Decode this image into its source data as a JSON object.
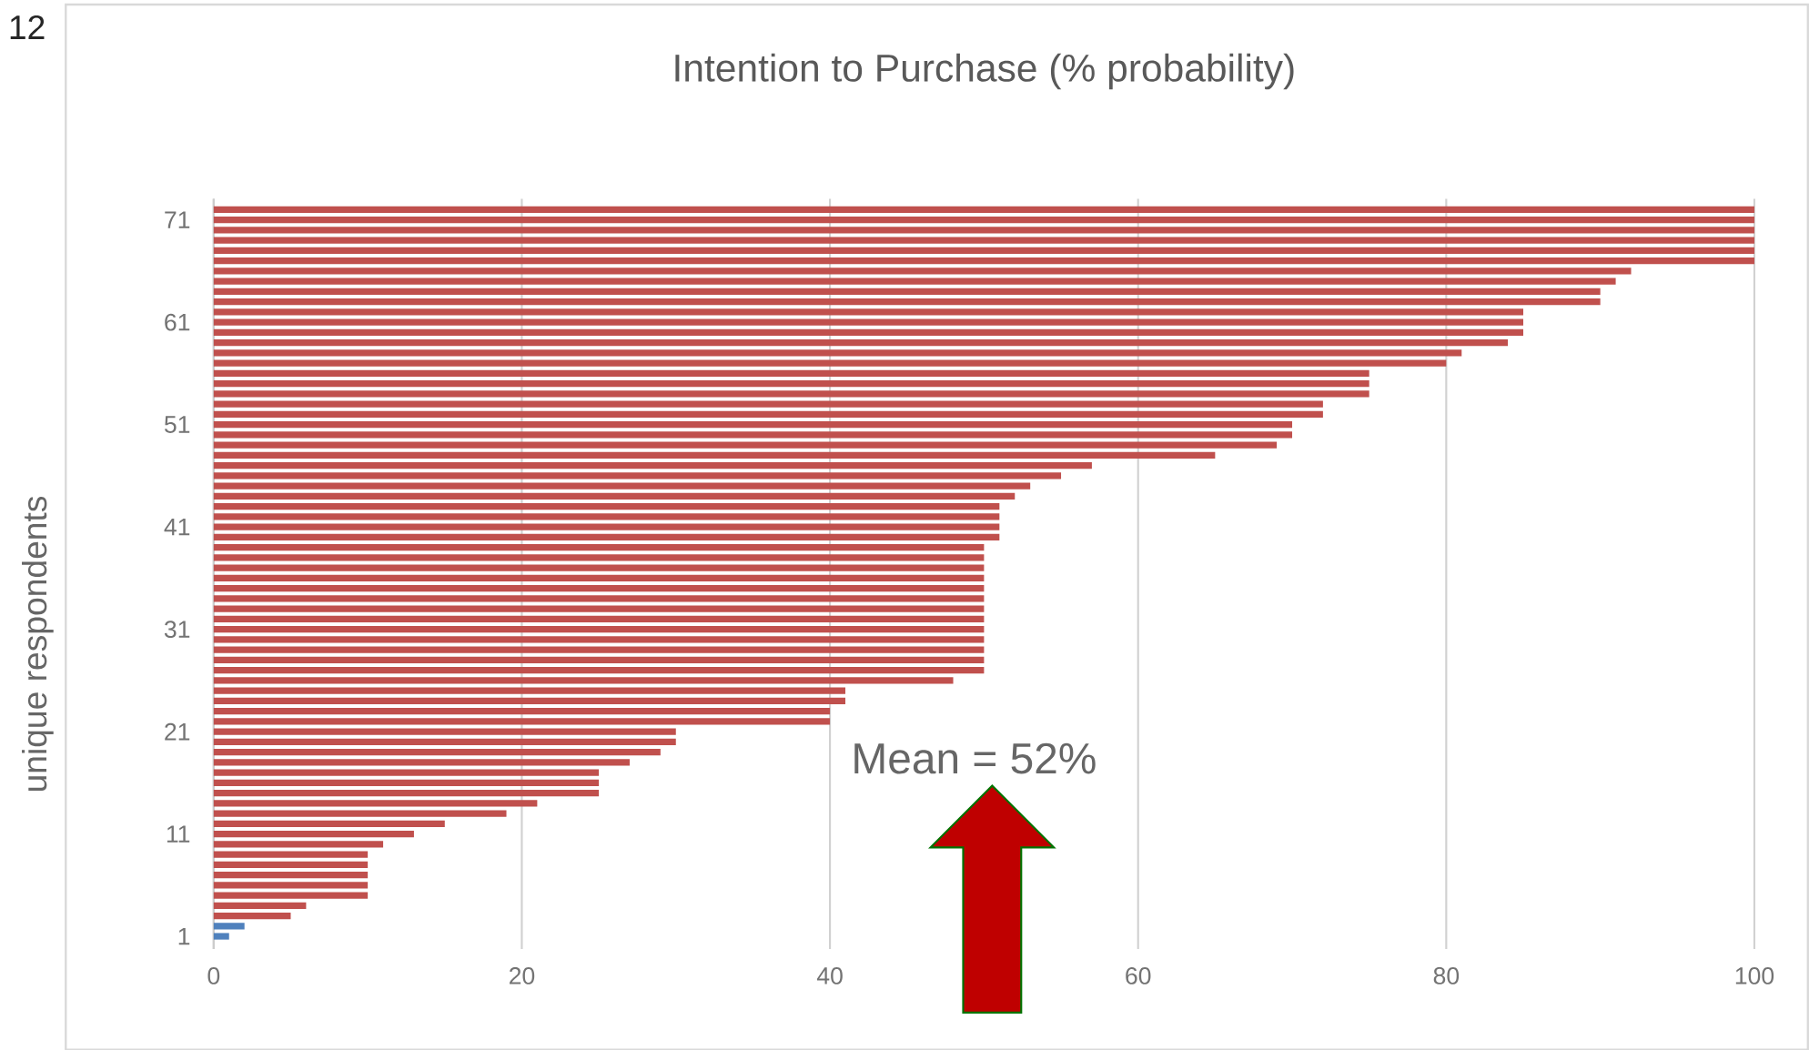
{
  "chart_data": {
    "type": "bar",
    "orientation": "horizontal",
    "title": "Intention to Purchase (% probability)",
    "ylabel": "unique respondents",
    "categories": [
      null,
      "71",
      null,
      null,
      null,
      null,
      null,
      null,
      null,
      null,
      null,
      "61",
      null,
      null,
      null,
      null,
      null,
      null,
      null,
      null,
      null,
      "51",
      null,
      null,
      null,
      null,
      null,
      null,
      null,
      null,
      null,
      "41",
      null,
      null,
      null,
      null,
      null,
      null,
      null,
      null,
      null,
      "31",
      null,
      null,
      null,
      null,
      null,
      null,
      null,
      null,
      null,
      "21",
      null,
      null,
      null,
      null,
      null,
      null,
      null,
      null,
      null,
      "11",
      null,
      null,
      null,
      null,
      null,
      null,
      null,
      null,
      null,
      "1"
    ],
    "values": [
      100,
      100,
      100,
      100,
      100,
      100,
      92,
      91,
      90,
      90,
      85,
      85,
      85,
      84,
      81,
      80,
      75,
      75,
      75,
      72,
      72,
      70,
      70,
      69,
      65,
      57,
      55,
      53,
      52,
      51,
      51,
      51,
      51,
      50,
      50,
      50,
      50,
      50,
      50,
      50,
      50,
      50,
      50,
      50,
      50,
      50,
      48,
      41,
      41,
      40,
      40,
      30,
      30,
      29,
      27,
      25,
      25,
      25,
      21,
      19,
      15,
      13,
      11,
      10,
      10,
      10,
      10,
      10,
      6,
      5,
      2,
      1
    ],
    "colors": [
      "#c0504d",
      "#c0504d",
      "#c0504d",
      "#c0504d",
      "#c0504d",
      "#c0504d",
      "#c0504d",
      "#c0504d",
      "#c0504d",
      "#c0504d",
      "#c0504d",
      "#c0504d",
      "#c0504d",
      "#c0504d",
      "#c0504d",
      "#c0504d",
      "#c0504d",
      "#c0504d",
      "#c0504d",
      "#c0504d",
      "#c0504d",
      "#c0504d",
      "#c0504d",
      "#c0504d",
      "#c0504d",
      "#c0504d",
      "#c0504d",
      "#c0504d",
      "#c0504d",
      "#c0504d",
      "#c0504d",
      "#c0504d",
      "#c0504d",
      "#c0504d",
      "#c0504d",
      "#c0504d",
      "#c0504d",
      "#c0504d",
      "#c0504d",
      "#c0504d",
      "#c0504d",
      "#c0504d",
      "#c0504d",
      "#c0504d",
      "#c0504d",
      "#c0504d",
      "#c0504d",
      "#c0504d",
      "#c0504d",
      "#c0504d",
      "#c0504d",
      "#c0504d",
      "#c0504d",
      "#c0504d",
      "#c0504d",
      "#c0504d",
      "#c0504d",
      "#c0504d",
      "#c0504d",
      "#c0504d",
      "#c0504d",
      "#c0504d",
      "#c0504d",
      "#c0504d",
      "#c0504d",
      "#c0504d",
      "#c0504d",
      "#c0504d",
      "#c0504d",
      "#c0504d",
      "#4f81bd",
      "#4f81bd"
    ],
    "xlim": [
      0,
      100
    ],
    "xticks": [
      0,
      20,
      40,
      60,
      80,
      100
    ],
    "grid": "x",
    "annotations": [
      "12",
      "Mean = 52%"
    ]
  }
}
